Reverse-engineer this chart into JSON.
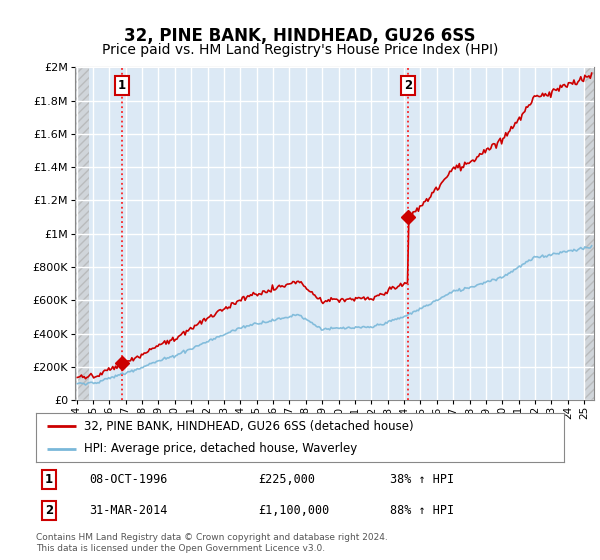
{
  "title": "32, PINE BANK, HINDHEAD, GU26 6SS",
  "subtitle": "Price paid vs. HM Land Registry's House Price Index (HPI)",
  "ylim": [
    0,
    2000000
  ],
  "yticks": [
    0,
    200000,
    400000,
    600000,
    800000,
    1000000,
    1200000,
    1400000,
    1600000,
    1800000,
    2000000
  ],
  "ytick_labels": [
    "£0",
    "£200K",
    "£400K",
    "£600K",
    "£800K",
    "£1M",
    "£1.2M",
    "£1.4M",
    "£1.6M",
    "£1.8M",
    "£2M"
  ],
  "xlim_start": 1993.9,
  "xlim_end": 2025.6,
  "hatch_left_end": 1994.75,
  "hatch_right_start": 2025.08,
  "xticks": [
    1994,
    1995,
    1996,
    1997,
    1998,
    1999,
    2000,
    2001,
    2002,
    2003,
    2004,
    2005,
    2006,
    2007,
    2008,
    2009,
    2010,
    2011,
    2012,
    2013,
    2014,
    2015,
    2016,
    2017,
    2018,
    2019,
    2020,
    2021,
    2022,
    2023,
    2024,
    2025
  ],
  "sale1_x": 1996.77,
  "sale1_y": 225000,
  "sale1_label": "1",
  "sale1_date": "08-OCT-1996",
  "sale1_price": "£225,000",
  "sale1_hpi": "38% ↑ HPI",
  "sale2_x": 2014.25,
  "sale2_y": 1100000,
  "sale2_label": "2",
  "sale2_date": "31-MAR-2014",
  "sale2_price": "£1,100,000",
  "sale2_hpi": "88% ↑ HPI",
  "hpi_line_color": "#7ab8d9",
  "price_line_color": "#cc0000",
  "sale_dot_color": "#cc0000",
  "bg_color": "#dce9f5",
  "grid_color": "#ffffff",
  "legend_label_red": "32, PINE BANK, HINDHEAD, GU26 6SS (detached house)",
  "legend_label_blue": "HPI: Average price, detached house, Waverley",
  "footer": "Contains HM Land Registry data © Crown copyright and database right 2024.\nThis data is licensed under the Open Government Licence v3.0.",
  "title_fontsize": 12,
  "subtitle_fontsize": 10
}
